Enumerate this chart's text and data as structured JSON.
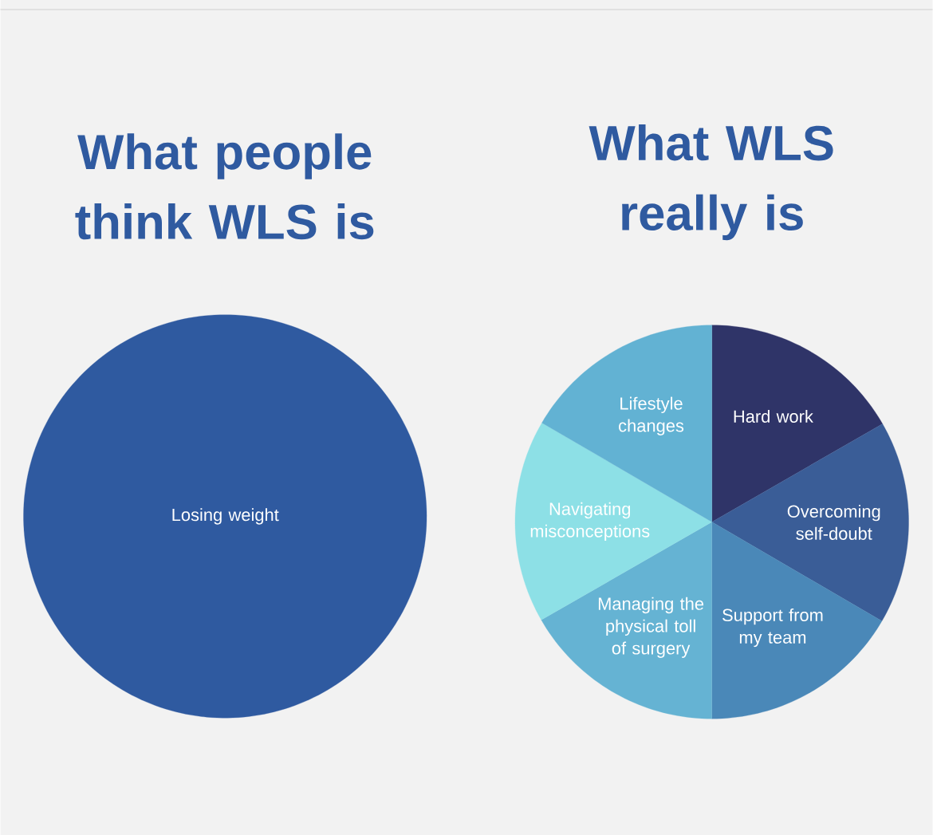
{
  "chart_data": [
    {
      "type": "pie",
      "title": "What people think WLS is",
      "categories": [
        "Losing weight"
      ],
      "values": [
        100
      ],
      "colors": [
        "#2f5aa0"
      ]
    },
    {
      "type": "pie",
      "title": "What WLS really is",
      "categories": [
        "Hard work",
        "Overcoming self-doubt",
        "Support from my team",
        "Managing the physical toll of surgery",
        "Navigating misconceptions",
        "Lifestyle changes"
      ],
      "values": [
        16.7,
        16.7,
        16.6,
        16.7,
        16.7,
        16.6
      ],
      "colors": [
        "#2f3468",
        "#3a5d97",
        "#4a88b8",
        "#65b3d3",
        "#8de0e6",
        "#62b2d3"
      ]
    }
  ]
}
